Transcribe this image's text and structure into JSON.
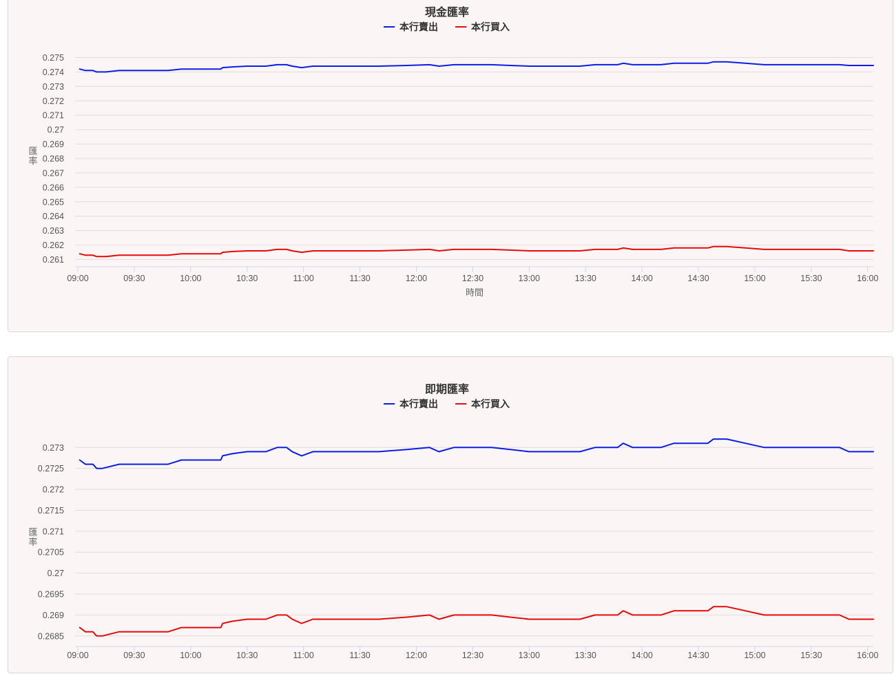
{
  "chart_data": [
    {
      "type": "line",
      "title": "現金匯率",
      "xlabel": "時間",
      "ylabel": "匯率",
      "legend_position": "top-center",
      "grid": true,
      "ylim": [
        0.2605,
        0.2755
      ],
      "y_ticks": [
        "0.275",
        "0.274",
        "0.273",
        "0.272",
        "0.271",
        "0.27",
        "0.269",
        "0.268",
        "0.267",
        "0.266",
        "0.265",
        "0.264",
        "0.263",
        "0.262",
        "0.261"
      ],
      "x_ticks": [
        "09:00",
        "09:30",
        "10:00",
        "10:30",
        "11:00",
        "11:30",
        "12:00",
        "12:30",
        "13:00",
        "13:30",
        "14:00",
        "14:30",
        "15:00",
        "15:30",
        "16:00"
      ],
      "series": [
        {
          "name": "本行賣出",
          "color": "#0a1ee6",
          "points": [
            [
              "09:01",
              0.2742
            ],
            [
              "09:04",
              0.2741
            ],
            [
              "09:08",
              0.2741
            ],
            [
              "09:10",
              0.274
            ],
            [
              "09:15",
              0.274
            ],
            [
              "09:22",
              0.2741
            ],
            [
              "09:30",
              0.2741
            ],
            [
              "09:40",
              0.2741
            ],
            [
              "09:48",
              0.2741
            ],
            [
              "09:55",
              0.2742
            ],
            [
              "10:00",
              0.2742
            ],
            [
              "10:10",
              0.2742
            ],
            [
              "10:16",
              0.2742
            ],
            [
              "10:17",
              0.2743
            ],
            [
              "10:22",
              0.27435
            ],
            [
              "10:30",
              0.2744
            ],
            [
              "10:40",
              0.2744
            ],
            [
              "10:46",
              0.2745
            ],
            [
              "10:51",
              0.2745
            ],
            [
              "10:54",
              0.2744
            ],
            [
              "10:59",
              0.2743
            ],
            [
              "11:05",
              0.2744
            ],
            [
              "11:20",
              0.2744
            ],
            [
              "11:40",
              0.2744
            ],
            [
              "11:55",
              0.27445
            ],
            [
              "12:07",
              0.2745
            ],
            [
              "12:12",
              0.2744
            ],
            [
              "12:20",
              0.2745
            ],
            [
              "12:40",
              0.2745
            ],
            [
              "12:50",
              0.27445
            ],
            [
              "13:00",
              0.2744
            ],
            [
              "13:10",
              0.2744
            ],
            [
              "13:27",
              0.2744
            ],
            [
              "13:35",
              0.2745
            ],
            [
              "13:47",
              0.2745
            ],
            [
              "13:50",
              0.2746
            ],
            [
              "13:55",
              0.2745
            ],
            [
              "14:10",
              0.2745
            ],
            [
              "14:17",
              0.2746
            ],
            [
              "14:35",
              0.2746
            ],
            [
              "14:38",
              0.2747
            ],
            [
              "14:45",
              0.2747
            ],
            [
              "14:55",
              0.2746
            ],
            [
              "15:05",
              0.2745
            ],
            [
              "15:20",
              0.2745
            ],
            [
              "15:45",
              0.2745
            ],
            [
              "15:50",
              0.27445
            ],
            [
              "16:03",
              0.27445
            ]
          ]
        },
        {
          "name": "本行買入",
          "color": "#e60a0a",
          "points": [
            [
              "09:01",
              0.2614
            ],
            [
              "09:04",
              0.2613
            ],
            [
              "09:08",
              0.2613
            ],
            [
              "09:10",
              0.2612
            ],
            [
              "09:15",
              0.2612
            ],
            [
              "09:22",
              0.2613
            ],
            [
              "09:30",
              0.2613
            ],
            [
              "09:40",
              0.2613
            ],
            [
              "09:48",
              0.2613
            ],
            [
              "09:55",
              0.2614
            ],
            [
              "10:00",
              0.2614
            ],
            [
              "10:10",
              0.2614
            ],
            [
              "10:16",
              0.2614
            ],
            [
              "10:17",
              0.2615
            ],
            [
              "10:22",
              0.26155
            ],
            [
              "10:30",
              0.2616
            ],
            [
              "10:40",
              0.2616
            ],
            [
              "10:46",
              0.2617
            ],
            [
              "10:51",
              0.2617
            ],
            [
              "10:54",
              0.2616
            ],
            [
              "10:59",
              0.2615
            ],
            [
              "11:05",
              0.2616
            ],
            [
              "11:20",
              0.2616
            ],
            [
              "11:40",
              0.2616
            ],
            [
              "11:55",
              0.26165
            ],
            [
              "12:07",
              0.2617
            ],
            [
              "12:12",
              0.2616
            ],
            [
              "12:20",
              0.2617
            ],
            [
              "12:40",
              0.2617
            ],
            [
              "12:50",
              0.26165
            ],
            [
              "13:00",
              0.2616
            ],
            [
              "13:10",
              0.2616
            ],
            [
              "13:27",
              0.2616
            ],
            [
              "13:35",
              0.2617
            ],
            [
              "13:47",
              0.2617
            ],
            [
              "13:50",
              0.2618
            ],
            [
              "13:55",
              0.2617
            ],
            [
              "14:10",
              0.2617
            ],
            [
              "14:17",
              0.2618
            ],
            [
              "14:35",
              0.2618
            ],
            [
              "14:38",
              0.2619
            ],
            [
              "14:45",
              0.2619
            ],
            [
              "14:55",
              0.2618
            ],
            [
              "15:05",
              0.2617
            ],
            [
              "15:20",
              0.2617
            ],
            [
              "15:45",
              0.2617
            ],
            [
              "15:50",
              0.2616
            ],
            [
              "16:03",
              0.2616
            ]
          ]
        }
      ]
    },
    {
      "type": "line",
      "title": "即期匯率",
      "xlabel": "",
      "ylabel": "匯率",
      "legend_position": "top-center",
      "grid": true,
      "ylim": [
        0.26825,
        0.27335
      ],
      "y_ticks": [
        "0.273",
        "0.2725",
        "0.272",
        "0.2715",
        "0.271",
        "0.2705",
        "0.27",
        "0.2695",
        "0.269",
        "0.2685"
      ],
      "x_ticks": [
        "09:00",
        "09:30",
        "10:00",
        "10:30",
        "11:00",
        "11:30",
        "12:00",
        "12:30",
        "13:00",
        "13:30",
        "14:00",
        "14:30",
        "15:00",
        "15:30",
        "16:00"
      ],
      "series": [
        {
          "name": "本行賣出",
          "color": "#0a1ee6",
          "points": [
            [
              "09:01",
              0.2727
            ],
            [
              "09:04",
              0.2726
            ],
            [
              "09:08",
              0.2726
            ],
            [
              "09:10",
              0.2725
            ],
            [
              "09:13",
              0.2725
            ],
            [
              "09:22",
              0.2726
            ],
            [
              "09:30",
              0.2726
            ],
            [
              "09:40",
              0.2726
            ],
            [
              "09:48",
              0.2726
            ],
            [
              "09:55",
              0.2727
            ],
            [
              "10:00",
              0.2727
            ],
            [
              "10:10",
              0.2727
            ],
            [
              "10:16",
              0.2727
            ],
            [
              "10:17",
              0.2728
            ],
            [
              "10:22",
              0.27285
            ],
            [
              "10:30",
              0.2729
            ],
            [
              "10:40",
              0.2729
            ],
            [
              "10:46",
              0.273
            ],
            [
              "10:51",
              0.273
            ],
            [
              "10:54",
              0.2729
            ],
            [
              "10:59",
              0.2728
            ],
            [
              "11:05",
              0.2729
            ],
            [
              "11:20",
              0.2729
            ],
            [
              "11:40",
              0.2729
            ],
            [
              "11:55",
              0.27295
            ],
            [
              "12:07",
              0.273
            ],
            [
              "12:12",
              0.2729
            ],
            [
              "12:20",
              0.273
            ],
            [
              "12:40",
              0.273
            ],
            [
              "12:50",
              0.27295
            ],
            [
              "13:00",
              0.2729
            ],
            [
              "13:10",
              0.2729
            ],
            [
              "13:27",
              0.2729
            ],
            [
              "13:35",
              0.273
            ],
            [
              "13:47",
              0.273
            ],
            [
              "13:50",
              0.2731
            ],
            [
              "13:55",
              0.273
            ],
            [
              "14:10",
              0.273
            ],
            [
              "14:17",
              0.2731
            ],
            [
              "14:35",
              0.2731
            ],
            [
              "14:38",
              0.2732
            ],
            [
              "14:45",
              0.2732
            ],
            [
              "14:55",
              0.2731
            ],
            [
              "15:05",
              0.273
            ],
            [
              "15:20",
              0.273
            ],
            [
              "15:45",
              0.273
            ],
            [
              "15:50",
              0.2729
            ],
            [
              "16:03",
              0.2729
            ]
          ]
        },
        {
          "name": "本行買入",
          "color": "#e60a0a",
          "points": [
            [
              "09:01",
              0.2687
            ],
            [
              "09:04",
              0.2686
            ],
            [
              "09:08",
              0.2686
            ],
            [
              "09:10",
              0.2685
            ],
            [
              "09:13",
              0.2685
            ],
            [
              "09:22",
              0.2686
            ],
            [
              "09:30",
              0.2686
            ],
            [
              "09:40",
              0.2686
            ],
            [
              "09:48",
              0.2686
            ],
            [
              "09:55",
              0.2687
            ],
            [
              "10:00",
              0.2687
            ],
            [
              "10:10",
              0.2687
            ],
            [
              "10:16",
              0.2687
            ],
            [
              "10:17",
              0.2688
            ],
            [
              "10:22",
              0.26885
            ],
            [
              "10:30",
              0.2689
            ],
            [
              "10:40",
              0.2689
            ],
            [
              "10:46",
              0.269
            ],
            [
              "10:51",
              0.269
            ],
            [
              "10:54",
              0.2689
            ],
            [
              "10:59",
              0.2688
            ],
            [
              "11:05",
              0.2689
            ],
            [
              "11:20",
              0.2689
            ],
            [
              "11:40",
              0.2689
            ],
            [
              "11:55",
              0.26895
            ],
            [
              "12:07",
              0.269
            ],
            [
              "12:12",
              0.2689
            ],
            [
              "12:20",
              0.269
            ],
            [
              "12:40",
              0.269
            ],
            [
              "12:50",
              0.26895
            ],
            [
              "13:00",
              0.2689
            ],
            [
              "13:10",
              0.2689
            ],
            [
              "13:27",
              0.2689
            ],
            [
              "13:35",
              0.269
            ],
            [
              "13:47",
              0.269
            ],
            [
              "13:50",
              0.2691
            ],
            [
              "13:55",
              0.269
            ],
            [
              "14:10",
              0.269
            ],
            [
              "14:17",
              0.2691
            ],
            [
              "14:35",
              0.2691
            ],
            [
              "14:38",
              0.2692
            ],
            [
              "14:45",
              0.2692
            ],
            [
              "14:55",
              0.2691
            ],
            [
              "15:05",
              0.269
            ],
            [
              "15:20",
              0.269
            ],
            [
              "15:45",
              0.269
            ],
            [
              "15:50",
              0.2689
            ],
            [
              "16:03",
              0.2689
            ]
          ]
        }
      ]
    }
  ]
}
